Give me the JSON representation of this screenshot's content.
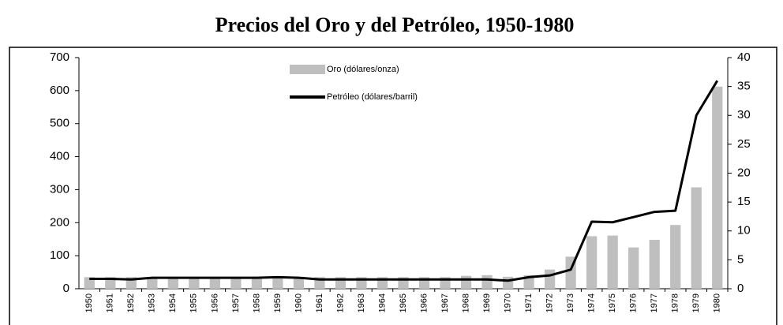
{
  "chart_data": {
    "type": "bar",
    "title": "Precios del Oro y del Petróleo, 1950-1980",
    "categories": [
      "1950",
      "1951",
      "1952",
      "1953",
      "1954",
      "1955",
      "1956",
      "1957",
      "1958",
      "1959",
      "1960",
      "1961",
      "1962",
      "1963",
      "1964",
      "1965",
      "1966",
      "1967",
      "1968",
      "1969",
      "1970",
      "1971",
      "1972",
      "1973",
      "1974",
      "1975",
      "1976",
      "1977",
      "1978",
      "1979",
      "1980"
    ],
    "series": [
      {
        "name": "Oro (dólares/onza)",
        "type": "bar",
        "axis": "y",
        "color": "#bfbfbf",
        "values": [
          35,
          35,
          35,
          35,
          35,
          35,
          35,
          35,
          35,
          35,
          35,
          35,
          35,
          35,
          35,
          35,
          35,
          35,
          39,
          41,
          36,
          41,
          58,
          97,
          159,
          161,
          125,
          148,
          193,
          307,
          612
        ]
      },
      {
        "name": "Petróleo (dólares/barril)",
        "type": "line",
        "axis": "y2",
        "color": "#000000",
        "values": [
          1.7,
          1.7,
          1.6,
          1.9,
          1.9,
          1.9,
          1.9,
          1.9,
          1.9,
          2.0,
          1.9,
          1.6,
          1.6,
          1.6,
          1.6,
          1.6,
          1.6,
          1.6,
          1.6,
          1.6,
          1.4,
          2.0,
          2.3,
          3.3,
          11.6,
          11.5,
          12.4,
          13.3,
          13.5,
          30,
          36
        ]
      }
    ],
    "ylim": [
      0,
      700
    ],
    "yticks": [
      0,
      100,
      200,
      300,
      400,
      500,
      600,
      700
    ],
    "y2lim": [
      0,
      40
    ],
    "y2ticks": [
      0,
      5,
      10,
      15,
      20,
      25,
      30,
      35,
      40
    ]
  }
}
